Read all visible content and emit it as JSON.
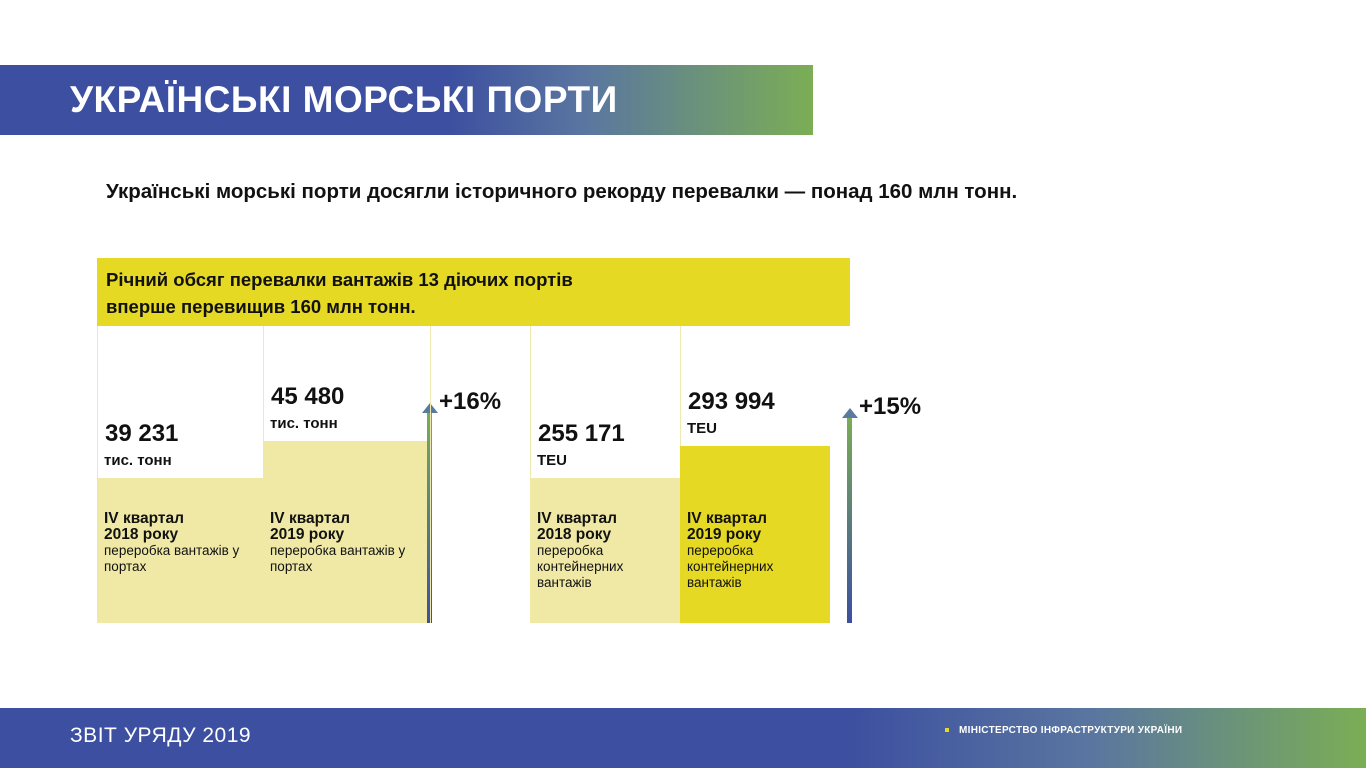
{
  "page": {
    "title": "УКРАЇНСЬКІ МОРСЬКІ ПОРТИ",
    "lead": "Українські морські порти досягли історичного рекорду перевалки — понад 160 млн тонн.",
    "footer_left": "ЗВІТ УРЯДУ 2019",
    "footer_right": "МІНІСТЕРСТВО ІНФРАСТРУКТУРИ УКРАЇНИ"
  },
  "colors": {
    "brand_blue": "#3c4fa0",
    "brand_green": "#7bae55",
    "accent_yellow": "#e5d923",
    "light_yellow": "#f0e9a6"
  },
  "card": {
    "line1": "Річний обсяг перевалки вантажів 13 діючих портів",
    "line2": "вперше перевищив 160 млн тонн."
  },
  "chart_data": [
    {
      "type": "bar",
      "categories": [
        "IV квартал 2018 року",
        "IV квартал 2019 року"
      ],
      "values": [
        39231,
        45480
      ],
      "value_labels": [
        "39 231",
        "45 480"
      ],
      "unit": "тис. тонн",
      "descriptions": [
        "переробка вантажів у портах",
        "переробка вантажів у портах"
      ],
      "growth": "+16%"
    },
    {
      "type": "bar",
      "categories": [
        "IV квартал 2018 року",
        "IV квартал 2019 року"
      ],
      "values": [
        255171,
        293994
      ],
      "value_labels": [
        "255 171",
        "293 994"
      ],
      "unit": "TEU",
      "descriptions": [
        "переробка контейнерних вантажів",
        "переробка контейнерних вантажів"
      ],
      "growth": "+15%"
    }
  ]
}
